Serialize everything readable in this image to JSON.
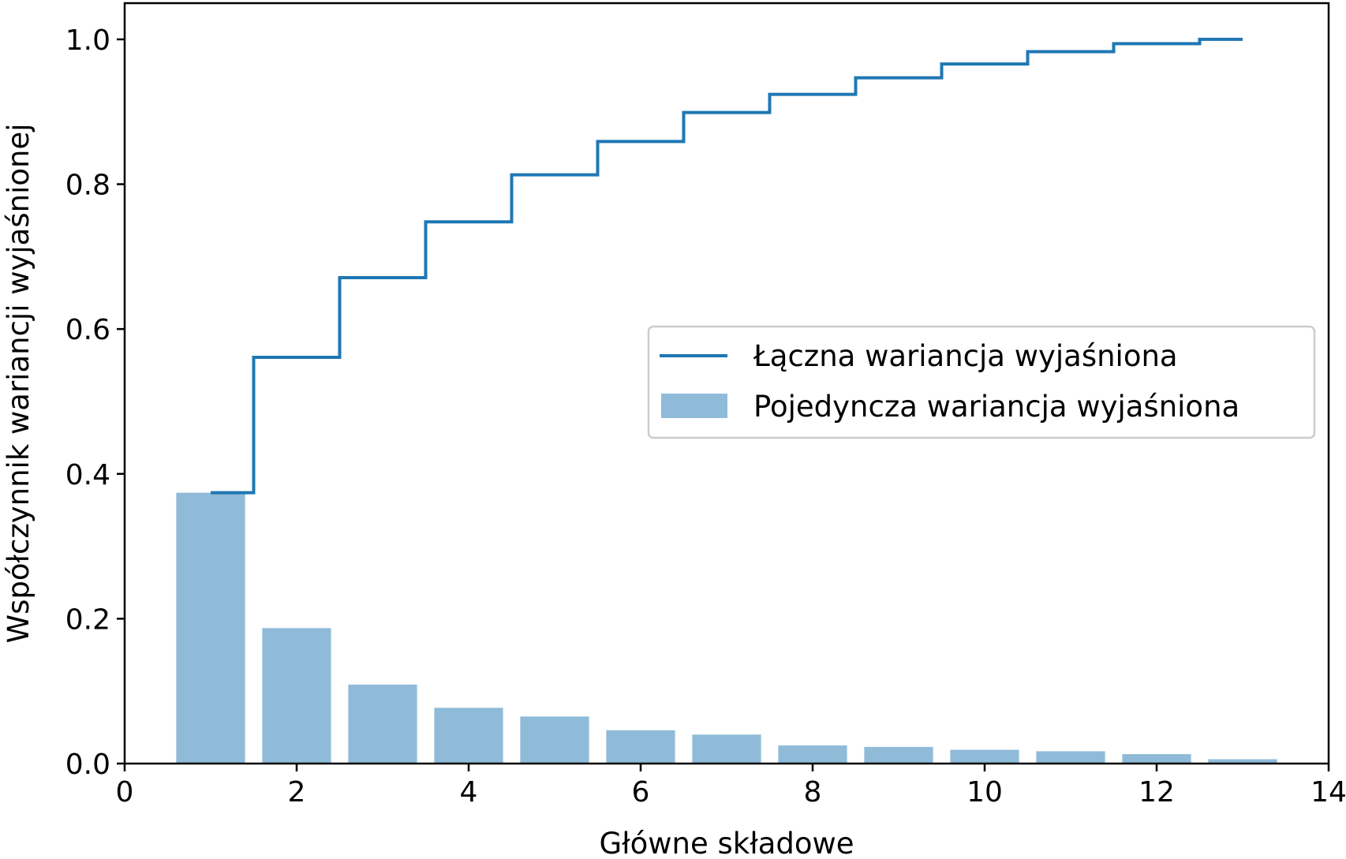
{
  "chart_data": {
    "type": "bar",
    "xlabel": "Główne składowe",
    "ylabel": "Współczynnik wariancji wyjaśnionej",
    "xlim": [
      0,
      14
    ],
    "ylim": [
      0,
      1.05
    ],
    "xticks": [
      0,
      2,
      4,
      6,
      8,
      10,
      12,
      14
    ],
    "yticks": [
      0.0,
      0.2,
      0.4,
      0.6,
      0.8,
      1.0
    ],
    "xtick_labels": [
      "0",
      "2",
      "4",
      "6",
      "8",
      "10",
      "12",
      "14"
    ],
    "ytick_labels": [
      "0.0",
      "0.2",
      "0.4",
      "0.6",
      "0.8",
      "1.0"
    ],
    "x": [
      1,
      2,
      3,
      4,
      5,
      6,
      7,
      8,
      9,
      10,
      11,
      12,
      13
    ],
    "series": [
      {
        "name": "Łączna wariancja wyjaśniona",
        "kind": "step",
        "values": [
          0.374,
          0.561,
          0.671,
          0.748,
          0.813,
          0.859,
          0.899,
          0.924,
          0.947,
          0.966,
          0.983,
          0.994,
          1.0
        ],
        "color": "#1f77b4"
      },
      {
        "name": "Pojedyncza wariancja wyjaśniona",
        "kind": "bar",
        "values": [
          0.374,
          0.187,
          0.109,
          0.077,
          0.065,
          0.046,
          0.04,
          0.025,
          0.023,
          0.019,
          0.017,
          0.013,
          0.006
        ],
        "color": "#1f77b4",
        "opacity": 0.5
      }
    ],
    "legend": {
      "position": "center-right"
    },
    "grid": false
  }
}
